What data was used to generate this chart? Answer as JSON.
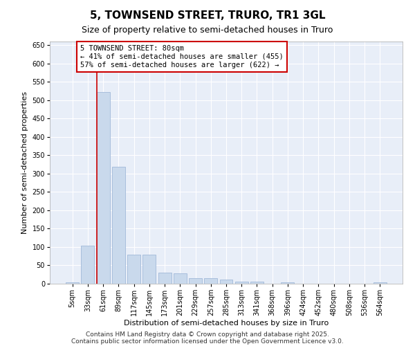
{
  "title": "5, TOWNSEND STREET, TRURO, TR1 3GL",
  "subtitle": "Size of property relative to semi-detached houses in Truro",
  "xlabel": "Distribution of semi-detached houses by size in Truro",
  "ylabel": "Number of semi-detached properties",
  "categories": [
    "5sqm",
    "33sqm",
    "61sqm",
    "89sqm",
    "117sqm",
    "145sqm",
    "173sqm",
    "201sqm",
    "229sqm",
    "257sqm",
    "285sqm",
    "313sqm",
    "341sqm",
    "368sqm",
    "396sqm",
    "424sqm",
    "452sqm",
    "480sqm",
    "508sqm",
    "536sqm",
    "564sqm"
  ],
  "values": [
    3,
    104,
    522,
    318,
    79,
    79,
    30,
    29,
    16,
    16,
    11,
    6,
    6,
    0,
    4,
    0,
    0,
    0,
    0,
    0,
    3
  ],
  "bar_color": "#c9d9ec",
  "bar_edge_color": "#a0b8d8",
  "vline_x_index": 2,
  "vline_color": "#cc0000",
  "annotation_text": "5 TOWNSEND STREET: 80sqm\n← 41% of semi-detached houses are smaller (455)\n57% of semi-detached houses are larger (622) →",
  "annotation_box_color": "#cc0000",
  "ylim": [
    0,
    660
  ],
  "yticks": [
    0,
    50,
    100,
    150,
    200,
    250,
    300,
    350,
    400,
    450,
    500,
    550,
    600,
    650
  ],
  "background_color": "#e8eef8",
  "footer_line1": "Contains HM Land Registry data © Crown copyright and database right 2025.",
  "footer_line2": "Contains public sector information licensed under the Open Government Licence v3.0.",
  "title_fontsize": 11,
  "subtitle_fontsize": 9,
  "axis_label_fontsize": 8,
  "tick_fontsize": 7,
  "annotation_fontsize": 7.5,
  "footer_fontsize": 6.5
}
